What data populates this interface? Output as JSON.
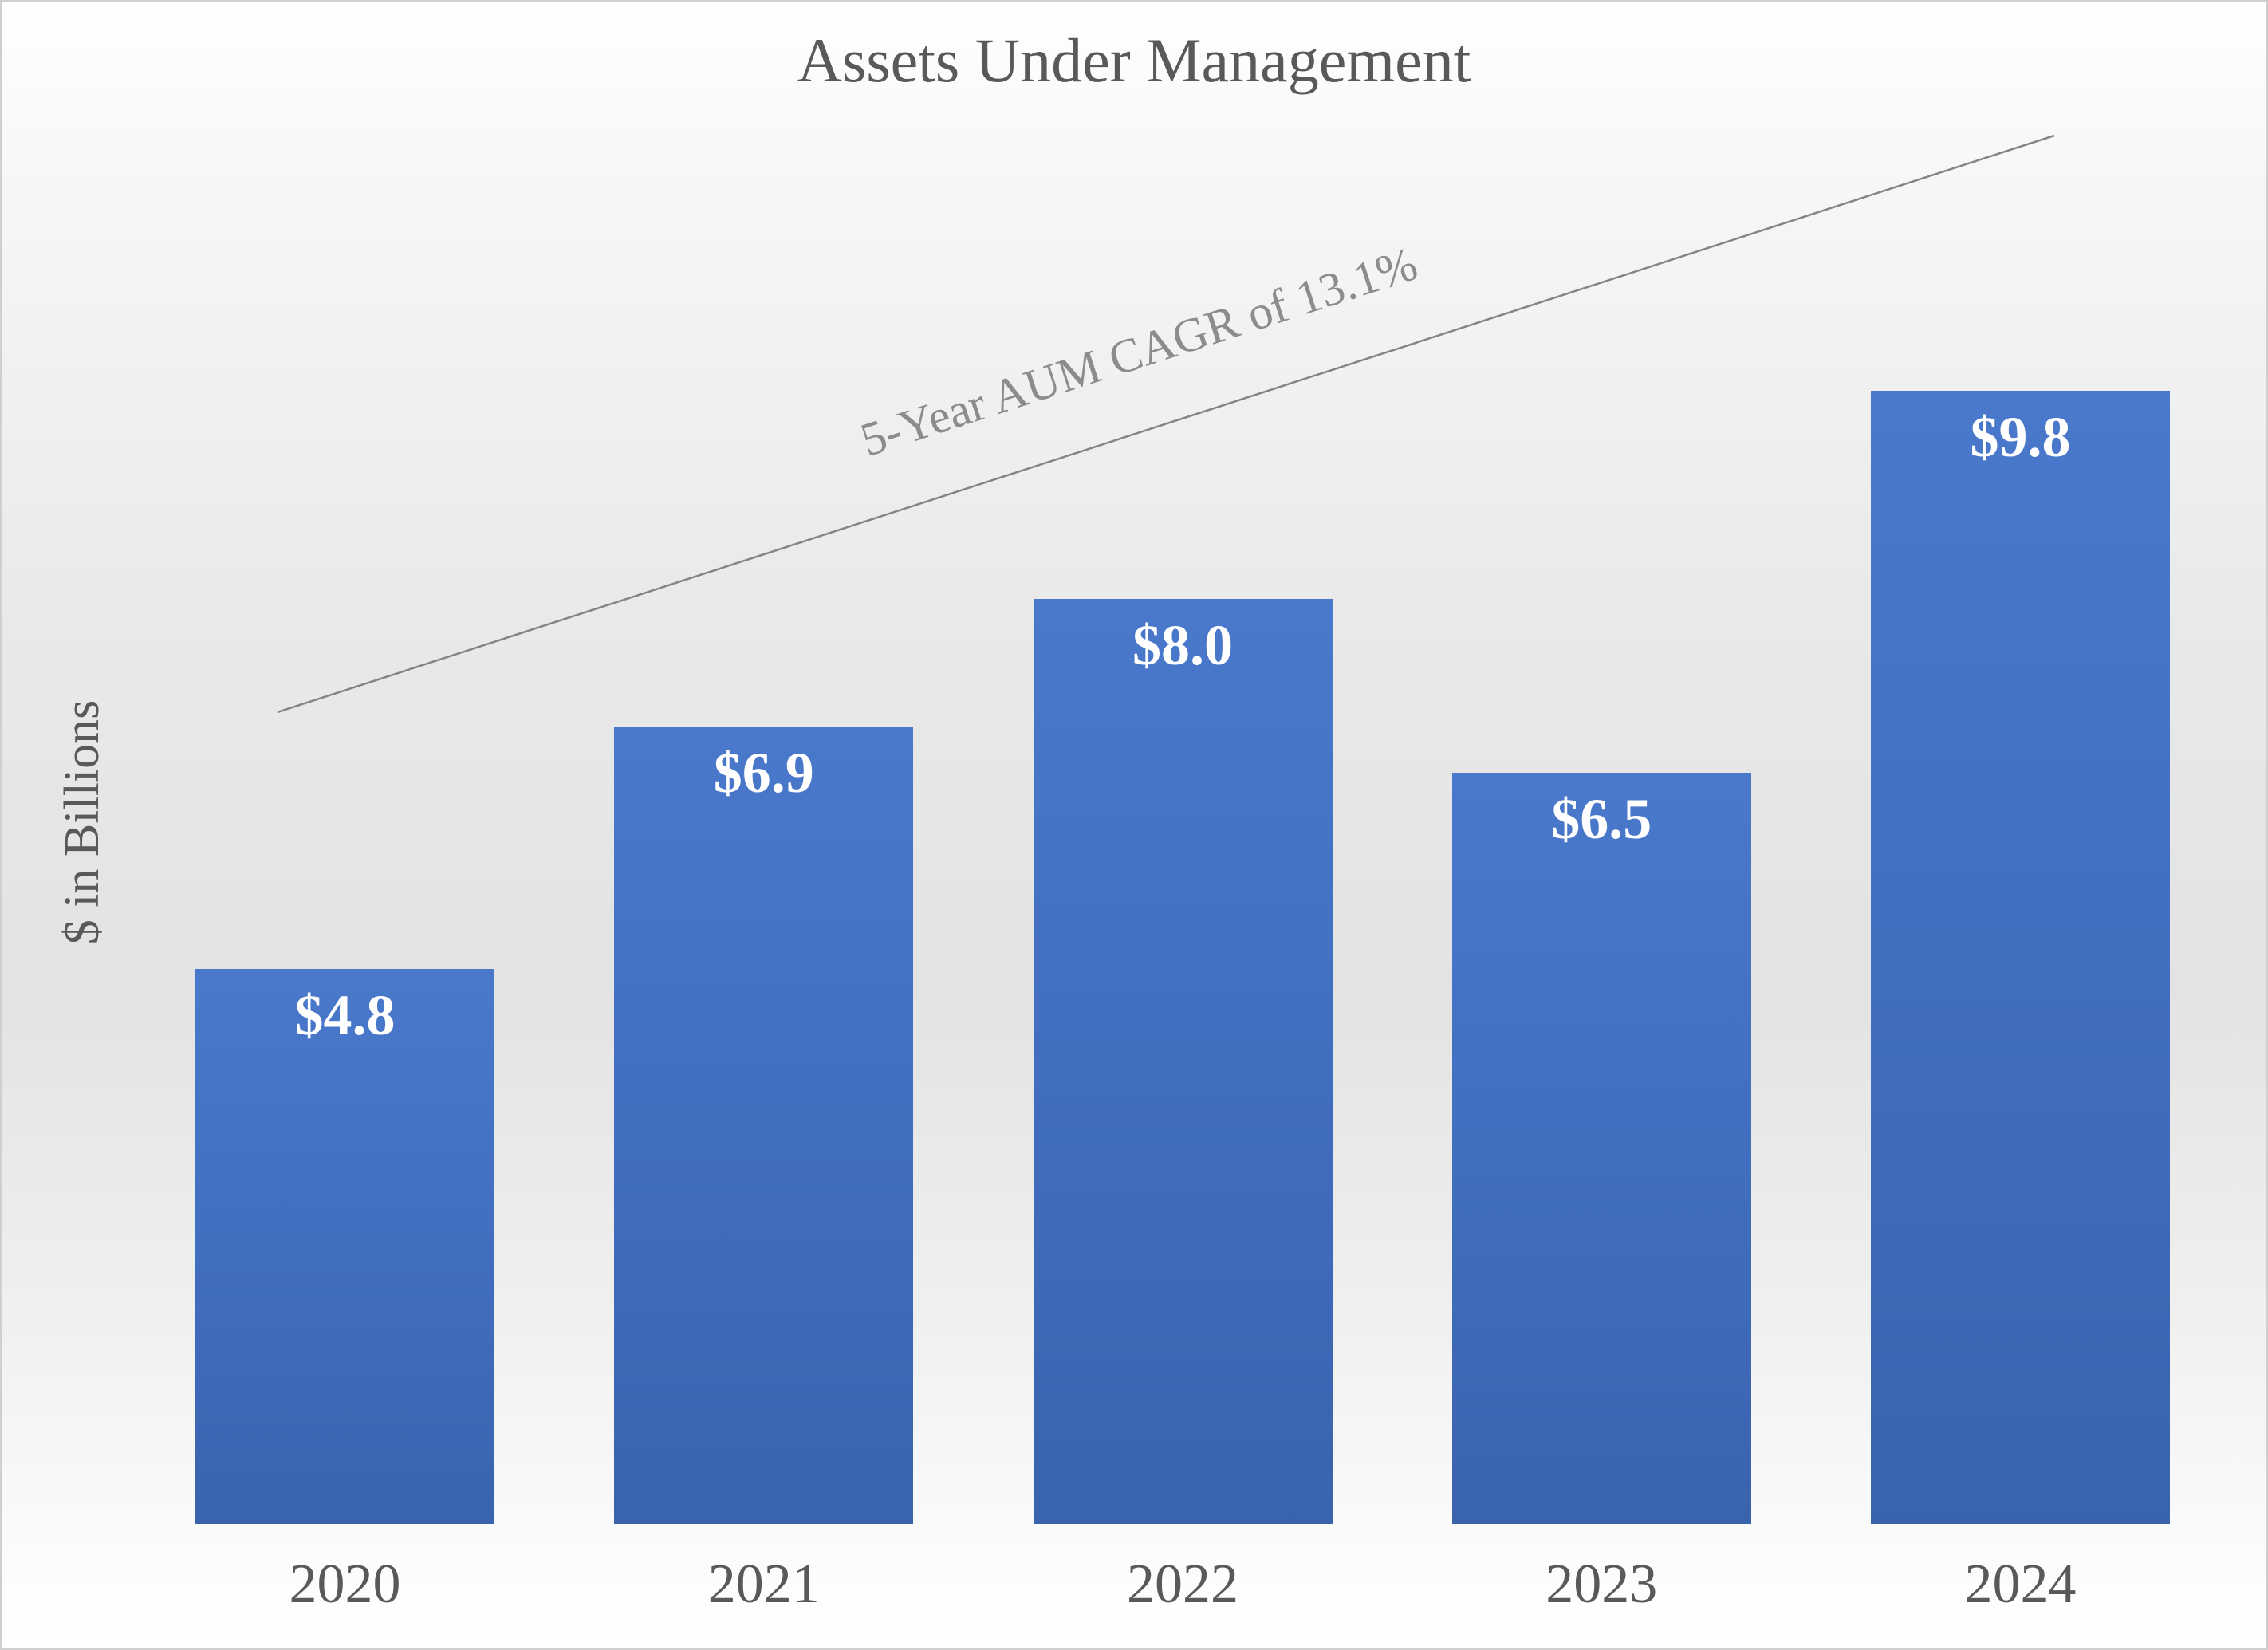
{
  "chart_data": {
    "type": "bar",
    "title": "Assets Under Management",
    "ylabel": "$ in Billions",
    "xlabel": "",
    "categories": [
      "2020",
      "2021",
      "2022",
      "2023",
      "2024"
    ],
    "values": [
      4.8,
      6.9,
      8.0,
      6.5,
      9.8
    ],
    "value_labels": [
      "$4.8",
      "$6.9",
      "$8.0",
      "$6.5",
      "$9.8"
    ],
    "annotation": "5-Year AUM CAGR of 13.1%",
    "ylim": [
      0,
      10
    ],
    "grid": false,
    "legend": false,
    "value_label_position": "inside-end",
    "colors": {
      "bar_fill": "#4472C4",
      "bar_value_label": "#FFFFFF",
      "title_text": "#595959",
      "axis_text": "#595959",
      "trend_line": "#848484",
      "trend_text": "#8C8C8C",
      "background_top": "#FFFFFF",
      "background_mid": "#E5E5E5",
      "background_bottom": "#FFFFFF"
    }
  }
}
